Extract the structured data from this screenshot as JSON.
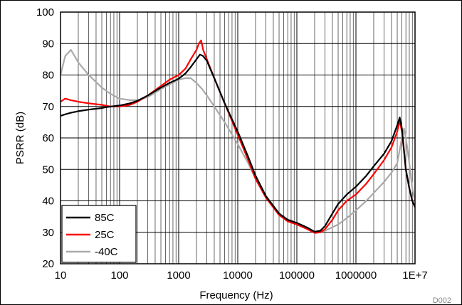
{
  "chart_data": {
    "type": "line",
    "title": "",
    "xlabel": "Frequency (Hz)",
    "ylabel": "PSRR (dB)",
    "xscale": "log",
    "xlim": [
      10,
      10000000
    ],
    "ylim": [
      20,
      100
    ],
    "x_tick_labels": [
      "10",
      "100",
      "1000",
      "10000",
      "100000",
      "1000000",
      "1E+7"
    ],
    "y_tick_labels": [
      "20",
      "30",
      "40",
      "50",
      "60",
      "70",
      "80",
      "90",
      "100"
    ],
    "grid": true,
    "legend_position": "bottom-left",
    "figure_id": "D002",
    "series": [
      {
        "name": "85C",
        "color": "#000000",
        "x": [
          10,
          12,
          15,
          20,
          30,
          50,
          60,
          100,
          150,
          200,
          300,
          500,
          700,
          1000,
          1300,
          1600,
          2000,
          2300,
          2600,
          3000,
          4000,
          6000,
          10000,
          15000,
          20000,
          30000,
          50000,
          70000,
          100000,
          150000,
          200000,
          250000,
          300000,
          400000,
          500000,
          700000,
          1000000,
          1500000,
          2000000,
          3000000,
          4000000,
          5000000,
          5500000,
          6000000,
          6500000,
          7000000,
          8000000,
          9000000,
          10000000
        ],
        "y": [
          67,
          67.5,
          68,
          68.5,
          69,
          69.5,
          69.8,
          70.3,
          71,
          71.8,
          73.5,
          76,
          77.5,
          78.8,
          80.5,
          82.5,
          85,
          86.5,
          86,
          84.5,
          79,
          71,
          62,
          54,
          48,
          41.5,
          36,
          34,
          33,
          31.5,
          30.2,
          30.5,
          32,
          36,
          39,
          42,
          44.5,
          48,
          51,
          55,
          59,
          64,
          66.5,
          63,
          56,
          50,
          44,
          40,
          38
        ]
      },
      {
        "name": "25C",
        "color": "#ff0000",
        "x": [
          10,
          12,
          15,
          20,
          30,
          50,
          70,
          100,
          150,
          200,
          300,
          500,
          700,
          1000,
          1300,
          1600,
          2000,
          2200,
          2400,
          2600,
          3000,
          4000,
          6000,
          10000,
          15000,
          20000,
          30000,
          50000,
          70000,
          100000,
          150000,
          200000,
          250000,
          300000,
          400000,
          500000,
          700000,
          1000000,
          1500000,
          2000000,
          3000000,
          4000000,
          5000000,
          5500000,
          6000000,
          6500000,
          7000000,
          8000000,
          9000000,
          10000000
        ],
        "y": [
          71.5,
          72.5,
          72,
          71.5,
          71,
          70.5,
          70,
          70,
          70.5,
          71.5,
          73.5,
          76.5,
          78.5,
          80,
          82,
          85,
          88,
          90,
          91,
          88,
          85,
          79,
          71,
          61,
          53,
          47,
          41,
          35.5,
          33.5,
          32.5,
          31,
          29.8,
          30,
          31,
          34,
          37,
          40,
          42,
          45.5,
          48.5,
          53,
          57,
          62,
          65.5,
          62,
          56,
          50,
          44,
          40,
          38
        ]
      },
      {
        "name": "-40C",
        "color": "#aaaaaa",
        "x": [
          10,
          12,
          15,
          20,
          30,
          50,
          70,
          100,
          150,
          200,
          300,
          500,
          700,
          1000,
          1300,
          1600,
          2000,
          2500,
          3000,
          4000,
          6000,
          10000,
          15000,
          20000,
          30000,
          50000,
          70000,
          100000,
          150000,
          200000,
          300000,
          500000,
          700000,
          1000000,
          1500000,
          2000000,
          3000000,
          4000000,
          5000000,
          6000000,
          6500000,
          7000000,
          8000000,
          9000000,
          10000000
        ],
        "y": [
          80,
          86,
          88,
          84,
          80,
          76,
          74,
          72.5,
          72,
          72,
          73,
          75.5,
          77,
          78.5,
          79,
          79,
          77.5,
          75.5,
          73.5,
          70,
          65,
          58,
          52,
          47,
          41,
          36,
          34,
          33,
          31.5,
          30,
          30.5,
          32.5,
          34.5,
          37,
          40,
          42.5,
          46,
          49,
          52,
          60,
          63,
          60,
          52,
          44,
          40
        ]
      }
    ]
  }
}
